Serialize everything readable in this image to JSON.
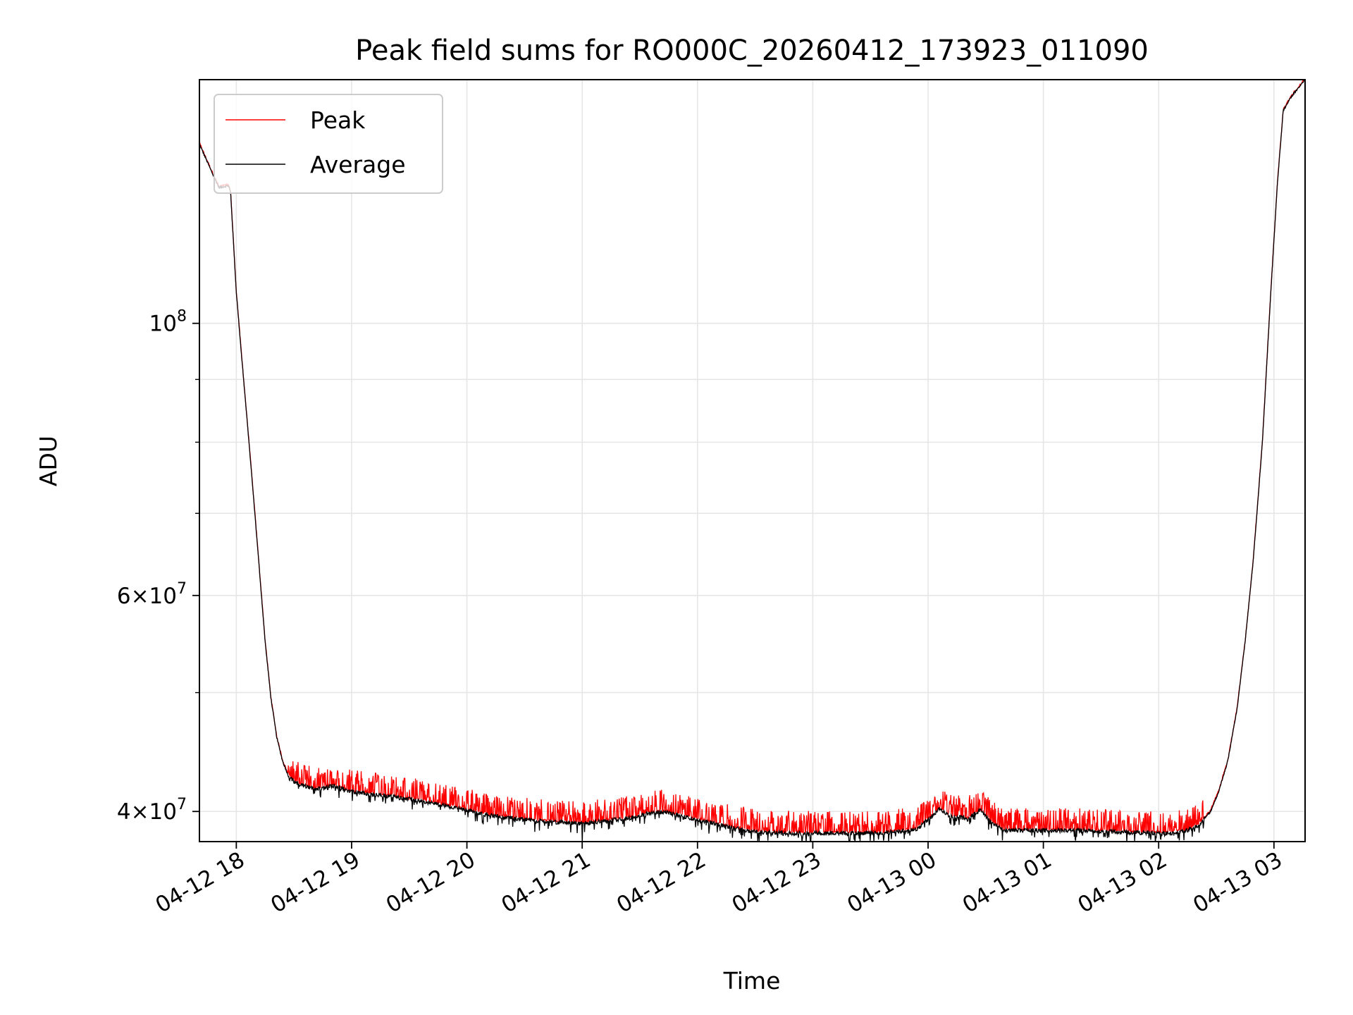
{
  "chart_data": {
    "type": "line",
    "title": "Peak field sums for RO000C_20260412_173923_011090",
    "xlabel": "Time",
    "ylabel": "ADU",
    "yscale": "log",
    "grid": true,
    "legend_position": "top-left",
    "x_unit": "hours since 2026-04-12 00:00",
    "xlim": [
      17.68,
      27.27
    ],
    "ylim": [
      37800000,
      158000000
    ],
    "x_ticks": [
      {
        "value": 18,
        "label": "04-12 18"
      },
      {
        "value": 19,
        "label": "04-12 19"
      },
      {
        "value": 20,
        "label": "04-12 20"
      },
      {
        "value": 21,
        "label": "04-12 21"
      },
      {
        "value": 22,
        "label": "04-12 22"
      },
      {
        "value": 23,
        "label": "04-12 23"
      },
      {
        "value": 24,
        "label": "04-13 00"
      },
      {
        "value": 25,
        "label": "04-13 01"
      },
      {
        "value": 26,
        "label": "04-13 02"
      },
      {
        "value": 27,
        "label": "04-13 03"
      }
    ],
    "y_ticks": [
      {
        "value": 40000000,
        "mantissa": "4",
        "exponent": "7"
      },
      {
        "value": 60000000,
        "mantissa": "6",
        "exponent": "7"
      },
      {
        "value": 100000000,
        "mantissa": "",
        "exponent": "8"
      }
    ],
    "y_minor_ticks": [
      50000000,
      70000000,
      80000000,
      90000000
    ],
    "series": [
      {
        "name": "Peak",
        "color": "#ff0000"
      },
      {
        "name": "Average",
        "color": "#000000"
      }
    ],
    "average_profile": [
      [
        17.68,
        140000000
      ],
      [
        17.8,
        132000000
      ],
      [
        17.85,
        129000000
      ],
      [
        17.93,
        129500000
      ],
      [
        17.95,
        128000000
      ],
      [
        18.0,
        106000000
      ],
      [
        18.05,
        93000000
      ],
      [
        18.1,
        82000000
      ],
      [
        18.15,
        72000000
      ],
      [
        18.2,
        63000000
      ],
      [
        18.25,
        55000000
      ],
      [
        18.3,
        49500000
      ],
      [
        18.35,
        46000000
      ],
      [
        18.4,
        44000000
      ],
      [
        18.45,
        42800000
      ],
      [
        18.5,
        42300000
      ],
      [
        18.6,
        41900000
      ],
      [
        18.7,
        41700000
      ],
      [
        18.85,
        42000000
      ],
      [
        19.0,
        41500000
      ],
      [
        19.3,
        41200000
      ],
      [
        19.6,
        40800000
      ],
      [
        19.9,
        40300000
      ],
      [
        20.2,
        39700000
      ],
      [
        20.5,
        39400000
      ],
      [
        20.8,
        39200000
      ],
      [
        21.0,
        39100000
      ],
      [
        21.2,
        39300000
      ],
      [
        21.4,
        39500000
      ],
      [
        21.55,
        39800000
      ],
      [
        21.7,
        40000000
      ],
      [
        21.9,
        39600000
      ],
      [
        22.1,
        39200000
      ],
      [
        22.3,
        38800000
      ],
      [
        22.5,
        38500000
      ],
      [
        22.8,
        38400000
      ],
      [
        23.2,
        38400000
      ],
      [
        23.6,
        38400000
      ],
      [
        23.9,
        38700000
      ],
      [
        24.0,
        39400000
      ],
      [
        24.1,
        40200000
      ],
      [
        24.2,
        39600000
      ],
      [
        24.35,
        39500000
      ],
      [
        24.45,
        40100000
      ],
      [
        24.55,
        39200000
      ],
      [
        24.65,
        38600000
      ],
      [
        24.8,
        38600000
      ],
      [
        25.3,
        38600000
      ],
      [
        25.8,
        38450000
      ],
      [
        26.1,
        38400000
      ],
      [
        26.25,
        38600000
      ],
      [
        26.35,
        39000000
      ],
      [
        26.45,
        40000000
      ],
      [
        26.52,
        41500000
      ],
      [
        26.6,
        44000000
      ],
      [
        26.68,
        48500000
      ],
      [
        26.75,
        55000000
      ],
      [
        26.82,
        64000000
      ],
      [
        26.9,
        80000000
      ],
      [
        26.97,
        105000000
      ],
      [
        27.03,
        130000000
      ],
      [
        27.08,
        149000000
      ],
      [
        27.15,
        153000000
      ],
      [
        27.27,
        158000000
      ]
    ]
  }
}
